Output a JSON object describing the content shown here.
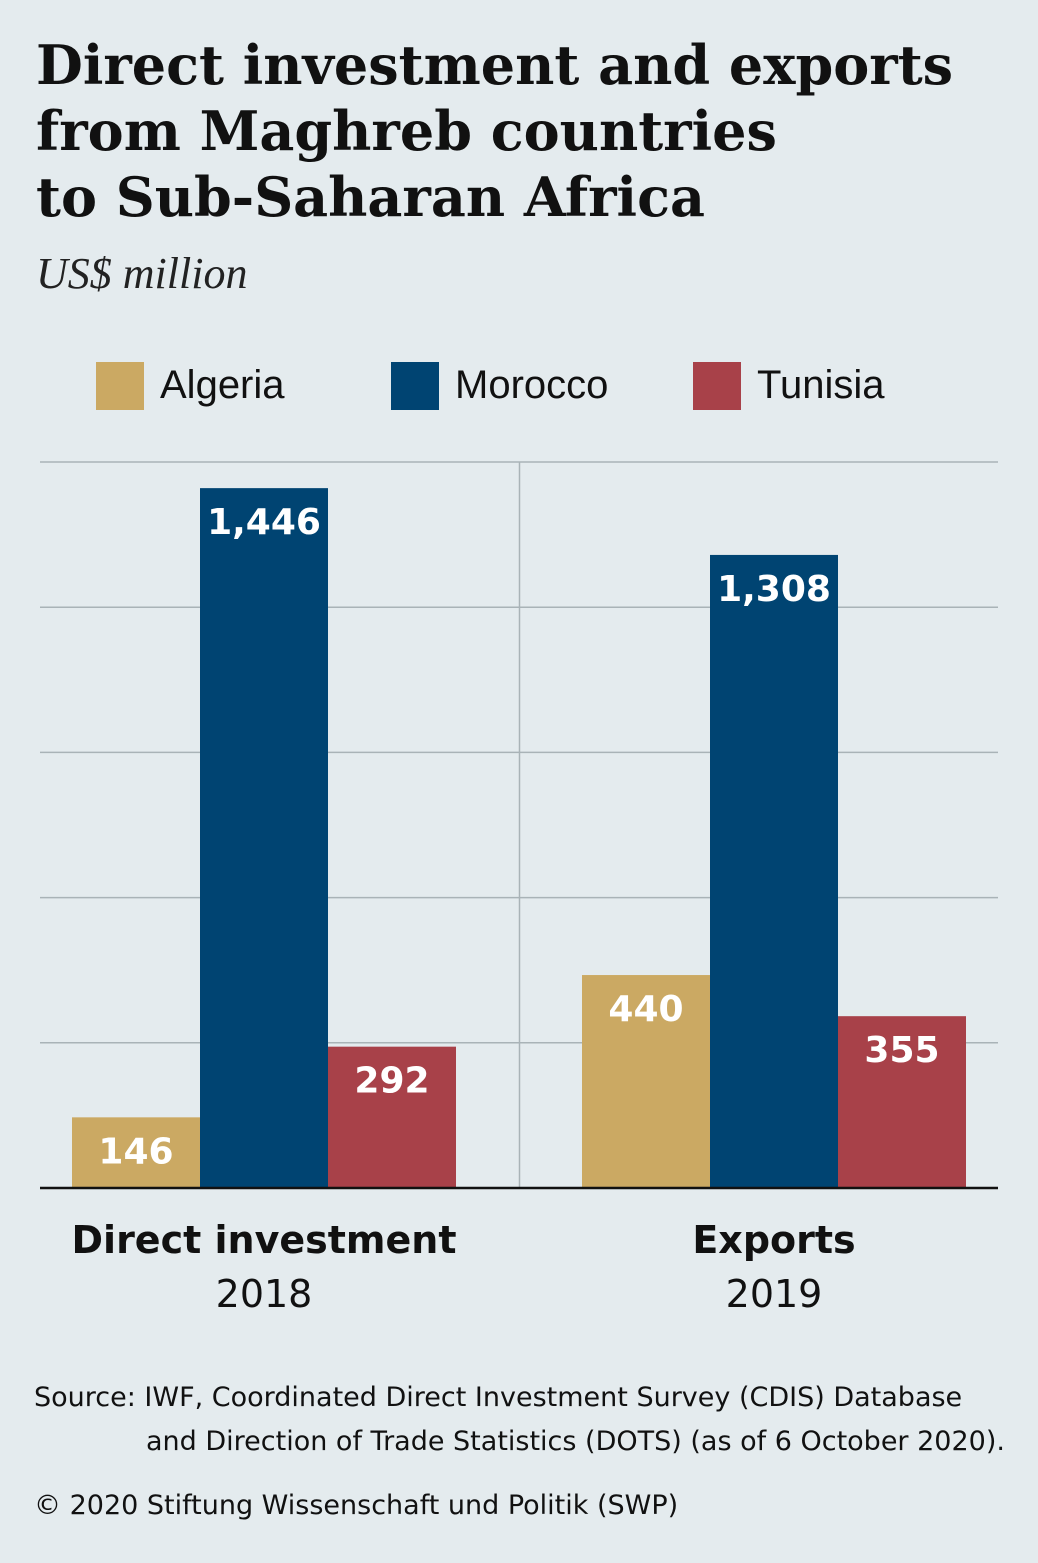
{
  "title_lines": [
    "Direct investment and exports",
    "from Maghreb countries",
    "to Sub-Saharan Africa"
  ],
  "subtitle": "US$ million",
  "legend": [
    {
      "label": "Algeria",
      "color": "#cba963"
    },
    {
      "label": "Morocco",
      "color": "#004472"
    },
    {
      "label": "Tunisia",
      "color": "#a84149"
    }
  ],
  "chart_data": {
    "type": "bar",
    "categories": [
      {
        "label": "Direct investment",
        "sub": "2018"
      },
      {
        "label": "Exports",
        "sub": "2019"
      }
    ],
    "series": [
      {
        "name": "Algeria",
        "color": "#cba963",
        "values": [
          146,
          440
        ],
        "labels": [
          "146",
          "440"
        ]
      },
      {
        "name": "Morocco",
        "color": "#004472",
        "values": [
          1446,
          1308
        ],
        "labels": [
          "1,446",
          "1,308"
        ]
      },
      {
        "name": "Tunisia",
        "color": "#a84149",
        "values": [
          292,
          355
        ],
        "labels": [
          "292",
          "355"
        ]
      }
    ],
    "ylim": [
      0,
      1500
    ],
    "gridlines": [
      300,
      600,
      900,
      1200,
      1500
    ],
    "grid": true,
    "legend_position": "top"
  },
  "source": {
    "line1": "Source: IWF, Coordinated Direct Investment Survey (CDIS) Database",
    "line2": "and Direction of Trade Statistics (DOTS) (as of 6 October 2020)."
  },
  "copyright": "© 2020 Stiftung Wissenschaft und Politik (SWP)"
}
